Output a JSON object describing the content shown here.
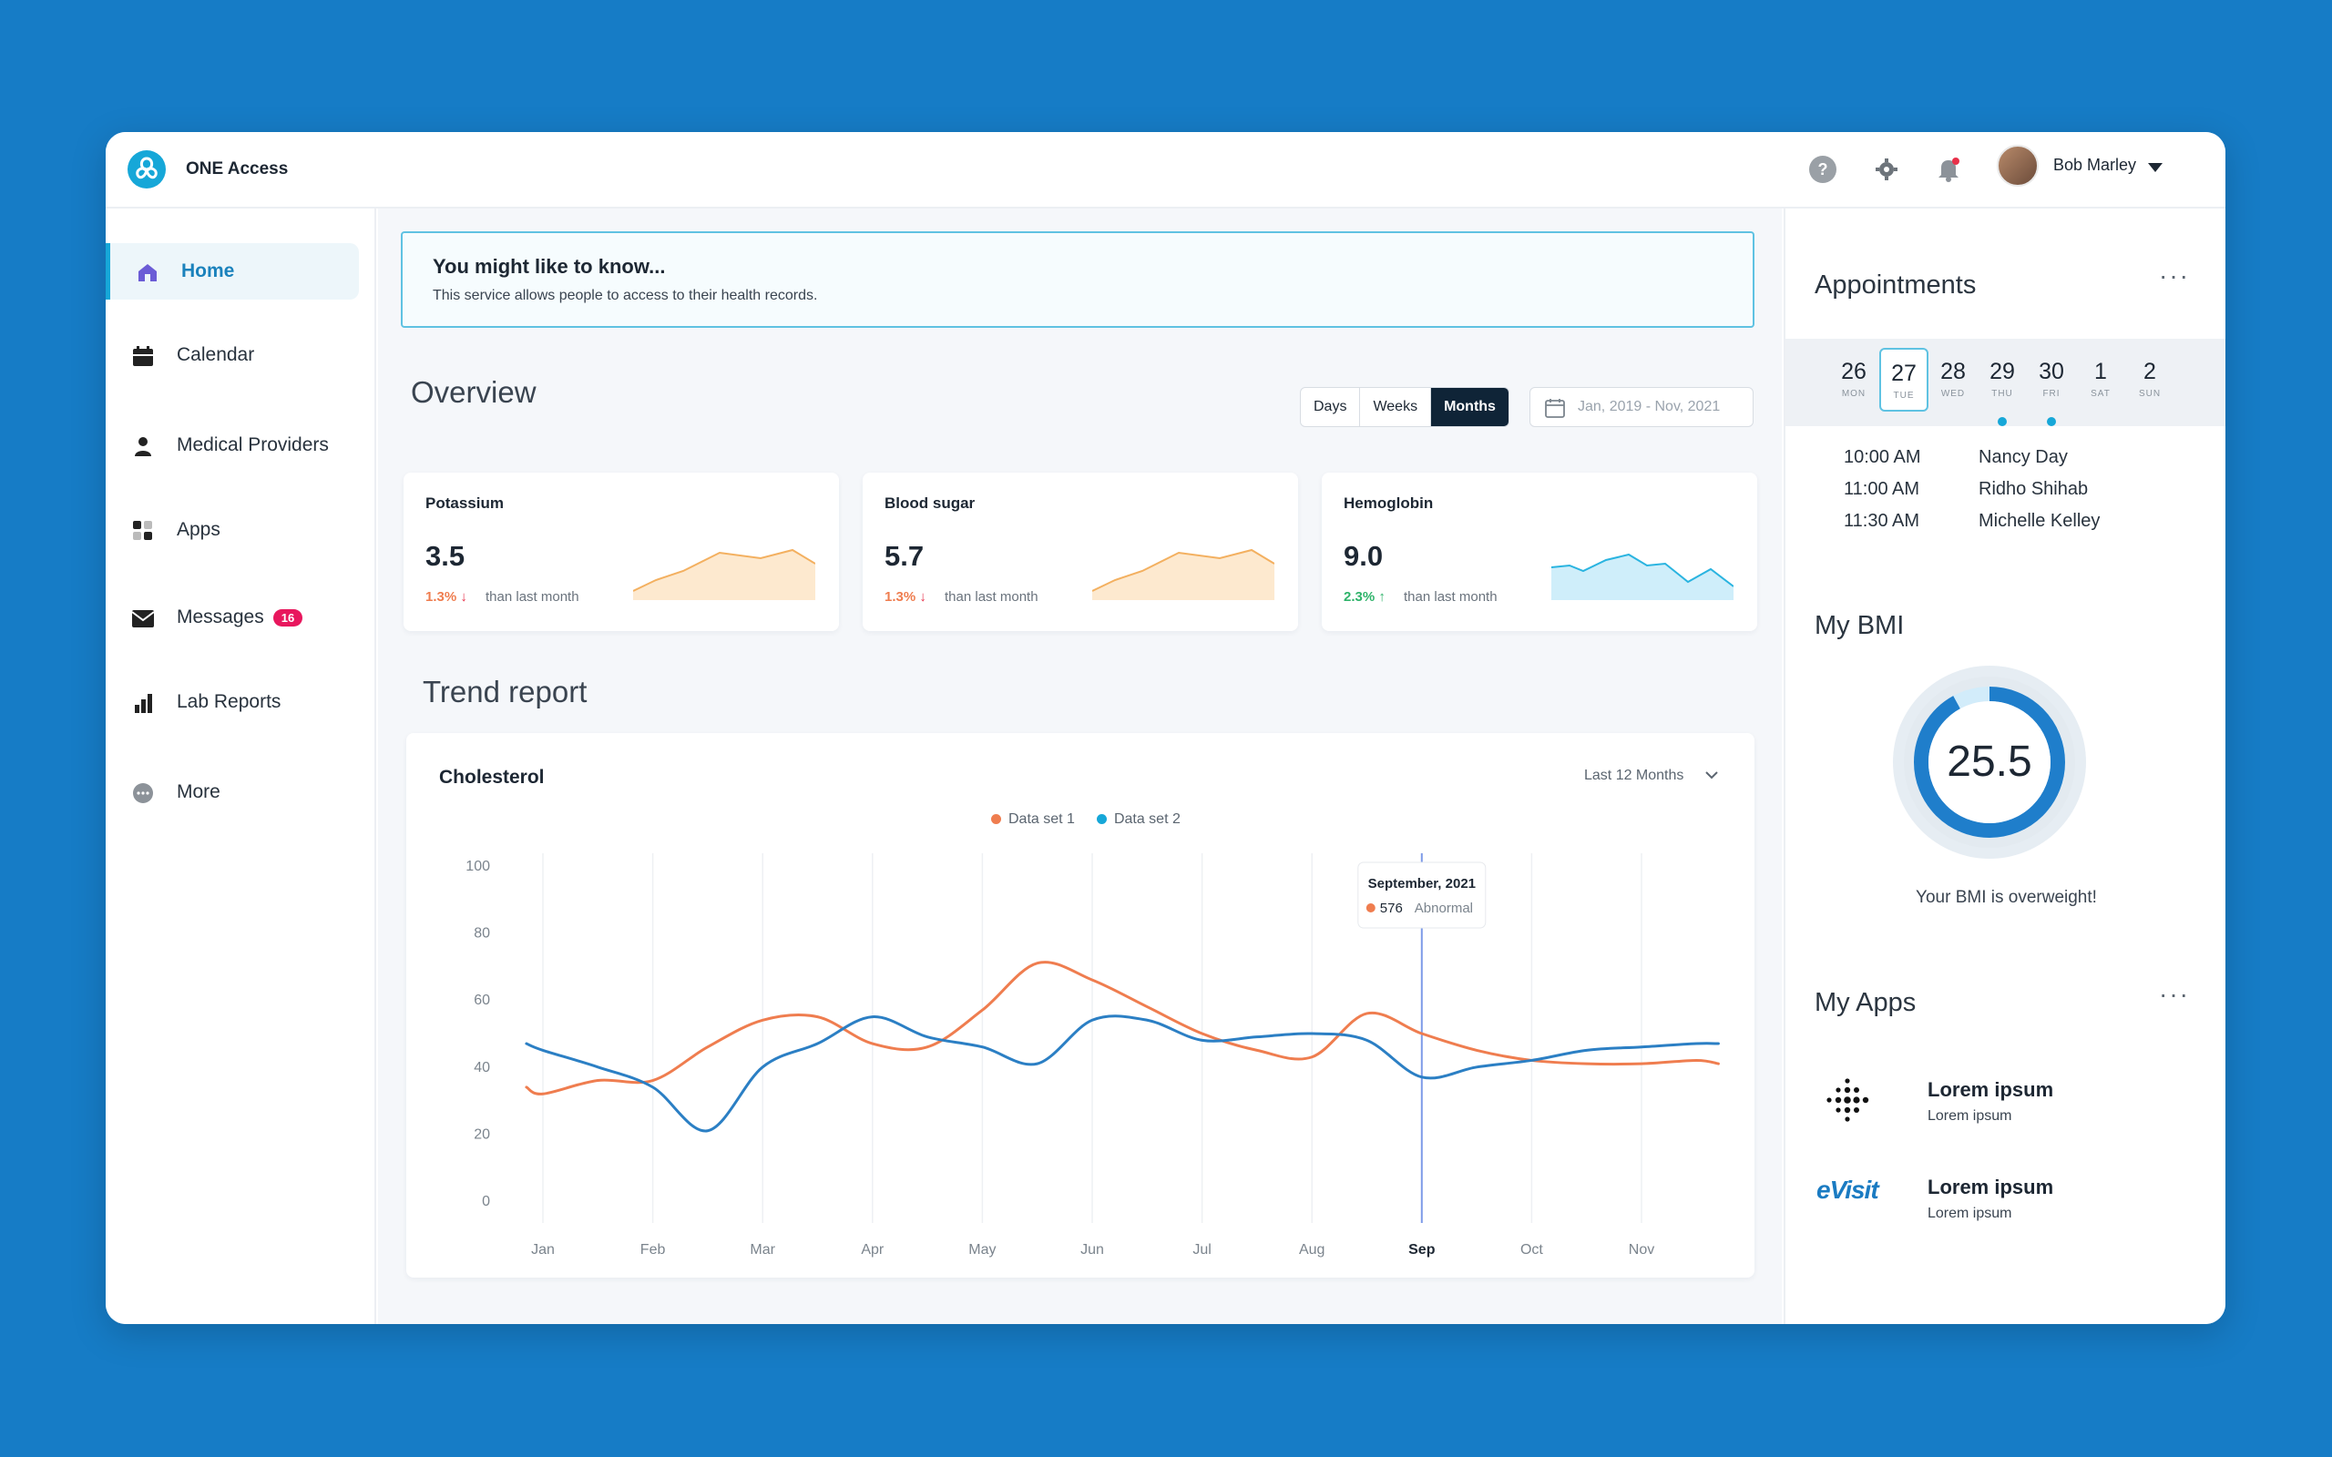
{
  "header": {
    "app_name": "ONE Access",
    "user_name": "Bob Marley",
    "help_label": "?"
  },
  "sidebar": {
    "items": [
      {
        "label": "Home",
        "icon": "home-icon",
        "active": true
      },
      {
        "label": "Calendar",
        "icon": "calendar-icon"
      },
      {
        "label": "Medical Providers",
        "icon": "person-icon"
      },
      {
        "label": "Apps",
        "icon": "apps-grid-icon"
      },
      {
        "label": "Messages",
        "icon": "envelope-icon",
        "badge": "16"
      },
      {
        "label": "Lab Reports",
        "icon": "bar-chart-icon"
      },
      {
        "label": "More",
        "icon": "more-icon"
      }
    ]
  },
  "banner": {
    "title": "You might like to know...",
    "text": "This service allows people to access to their health records."
  },
  "overview": {
    "title": "Overview",
    "segments": [
      "Days",
      "Weeks",
      "Months"
    ],
    "selected_segment": "Months",
    "date_range": "Jan, 2019 - Nov, 2021",
    "cards": [
      {
        "label": "Potassium",
        "value": "3.5",
        "change": "1.3%",
        "direction": "down",
        "note": "than last month",
        "color": "#f2994a"
      },
      {
        "label": "Blood sugar",
        "value": "5.7",
        "change": "1.3%",
        "direction": "down",
        "note": "than last month",
        "color": "#f2994a"
      },
      {
        "label": "Hemoglobin",
        "value": "9.0",
        "change": "2.3%",
        "direction": "up",
        "note": "than last month",
        "color": "#2ab4e0"
      }
    ]
  },
  "trend": {
    "title": "Trend report",
    "chart_title": "Cholesterol",
    "period": "Last 12 Months",
    "tooltip": {
      "title": "September, 2021",
      "value": "576",
      "status": "Abnormal"
    }
  },
  "chart_data": {
    "type": "line",
    "title": "Cholesterol",
    "categories": [
      "Jan",
      "Feb",
      "Mar",
      "Apr",
      "May",
      "Jun",
      "Jul",
      "Aug",
      "Sep",
      "Oct",
      "Nov"
    ],
    "highlight_category": "Sep",
    "ylim": [
      0,
      100
    ],
    "yticks": [
      0,
      20,
      40,
      60,
      80,
      100
    ],
    "x": [
      -0.15,
      0.0,
      0.5,
      1.0,
      1.5,
      2.0,
      2.5,
      3.0,
      3.5,
      4.0,
      4.5,
      5.0,
      5.5,
      6.0,
      6.5,
      7.0,
      7.5,
      8.0,
      8.5,
      9.0,
      9.5,
      10.0,
      10.5,
      10.7
    ],
    "series": [
      {
        "name": "Data set 1",
        "color": "#ef7d4f",
        "values": [
          34,
          32,
          36,
          36,
          46,
          54,
          55,
          47,
          46,
          57,
          71,
          66,
          58,
          50,
          45,
          43,
          56,
          50,
          45,
          42,
          41,
          41,
          42,
          41
        ]
      },
      {
        "name": "Data set 2",
        "color": "#2b7fc4",
        "values": [
          47,
          45,
          40,
          34,
          21,
          40,
          47,
          55,
          49,
          46,
          41,
          54,
          54,
          48,
          49,
          50,
          48,
          37,
          40,
          42,
          45,
          46,
          47,
          47
        ]
      }
    ],
    "legend": "top-center"
  },
  "appointments": {
    "title": "Appointments",
    "days": [
      {
        "num": "26",
        "wd": "MON"
      },
      {
        "num": "27",
        "wd": "TUE",
        "selected": true
      },
      {
        "num": "28",
        "wd": "WED"
      },
      {
        "num": "29",
        "wd": "THU",
        "marked": true
      },
      {
        "num": "30",
        "wd": "FRI",
        "marked": true
      },
      {
        "num": "1",
        "wd": "SAT"
      },
      {
        "num": "2",
        "wd": "SUN"
      }
    ],
    "list": [
      {
        "time": "10:00 AM",
        "name": "Nancy Day"
      },
      {
        "time": "11:00 AM",
        "name": "Ridho Shihab"
      },
      {
        "time": "11:30 AM",
        "name": "Michelle Kelley"
      }
    ]
  },
  "bmi": {
    "title": "My BMI",
    "value": "25.5",
    "progress": 0.92,
    "note": "Your BMI is overweight!"
  },
  "my_apps": {
    "title": "My Apps",
    "apps": [
      {
        "name": "Lorem ipsum",
        "sub": "Lorem ipsum",
        "logo": "fitbit-dots-icon"
      },
      {
        "name": "Lorem ipsum",
        "sub": "Lorem ipsum",
        "logo": "eVisit",
        "logo_text": "eVisit"
      }
    ]
  }
}
